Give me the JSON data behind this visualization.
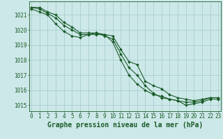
{
  "background_color": "#cde8e8",
  "grid_color": "#aacece",
  "line_color": "#1a5c2a",
  "xlabel": "Graphe pression niveau de la mer (hPa)",
  "xlabel_fontsize": 7,
  "ylabel_ticks": [
    1015,
    1016,
    1017,
    1018,
    1019,
    1020,
    1021
  ],
  "xticks": [
    0,
    1,
    2,
    3,
    4,
    5,
    6,
    7,
    8,
    9,
    10,
    11,
    12,
    13,
    14,
    15,
    16,
    17,
    18,
    19,
    20,
    21,
    22,
    23
  ],
  "xlim": [
    -0.3,
    23.3
  ],
  "ylim": [
    1014.6,
    1021.9
  ],
  "series": [
    [
      1021.5,
      1021.5,
      1021.2,
      1021.0,
      1020.5,
      1020.2,
      1019.8,
      1019.8,
      1019.8,
      1019.7,
      1019.6,
      1018.7,
      1017.9,
      1017.7,
      1016.6,
      1016.3,
      1016.1,
      1015.7,
      1015.5,
      1015.4,
      1015.3,
      1015.4,
      1015.5,
      1015.5
    ],
    [
      1021.5,
      1021.4,
      1021.1,
      1020.8,
      1020.3,
      1020.0,
      1019.7,
      1019.7,
      1019.8,
      1019.6,
      1019.4,
      1018.4,
      1017.5,
      1017.0,
      1016.3,
      1015.8,
      1015.5,
      1015.4,
      1015.3,
      1015.2,
      1015.2,
      1015.3,
      1015.5,
      1015.5
    ],
    [
      1021.4,
      1021.2,
      1021.0,
      1020.4,
      1019.9,
      1019.6,
      1019.5,
      1019.7,
      1019.7,
      1019.7,
      1019.2,
      1018.0,
      1017.0,
      1016.4,
      1016.0,
      1015.7,
      1015.6,
      1015.4,
      1015.3,
      1015.0,
      1015.1,
      1015.2,
      1015.4,
      1015.4
    ]
  ],
  "tick_fontsize": 5.5,
  "tick_color": "#1a5c2a",
  "marker": "D",
  "marker_size": 2.0,
  "line_width": 0.8
}
